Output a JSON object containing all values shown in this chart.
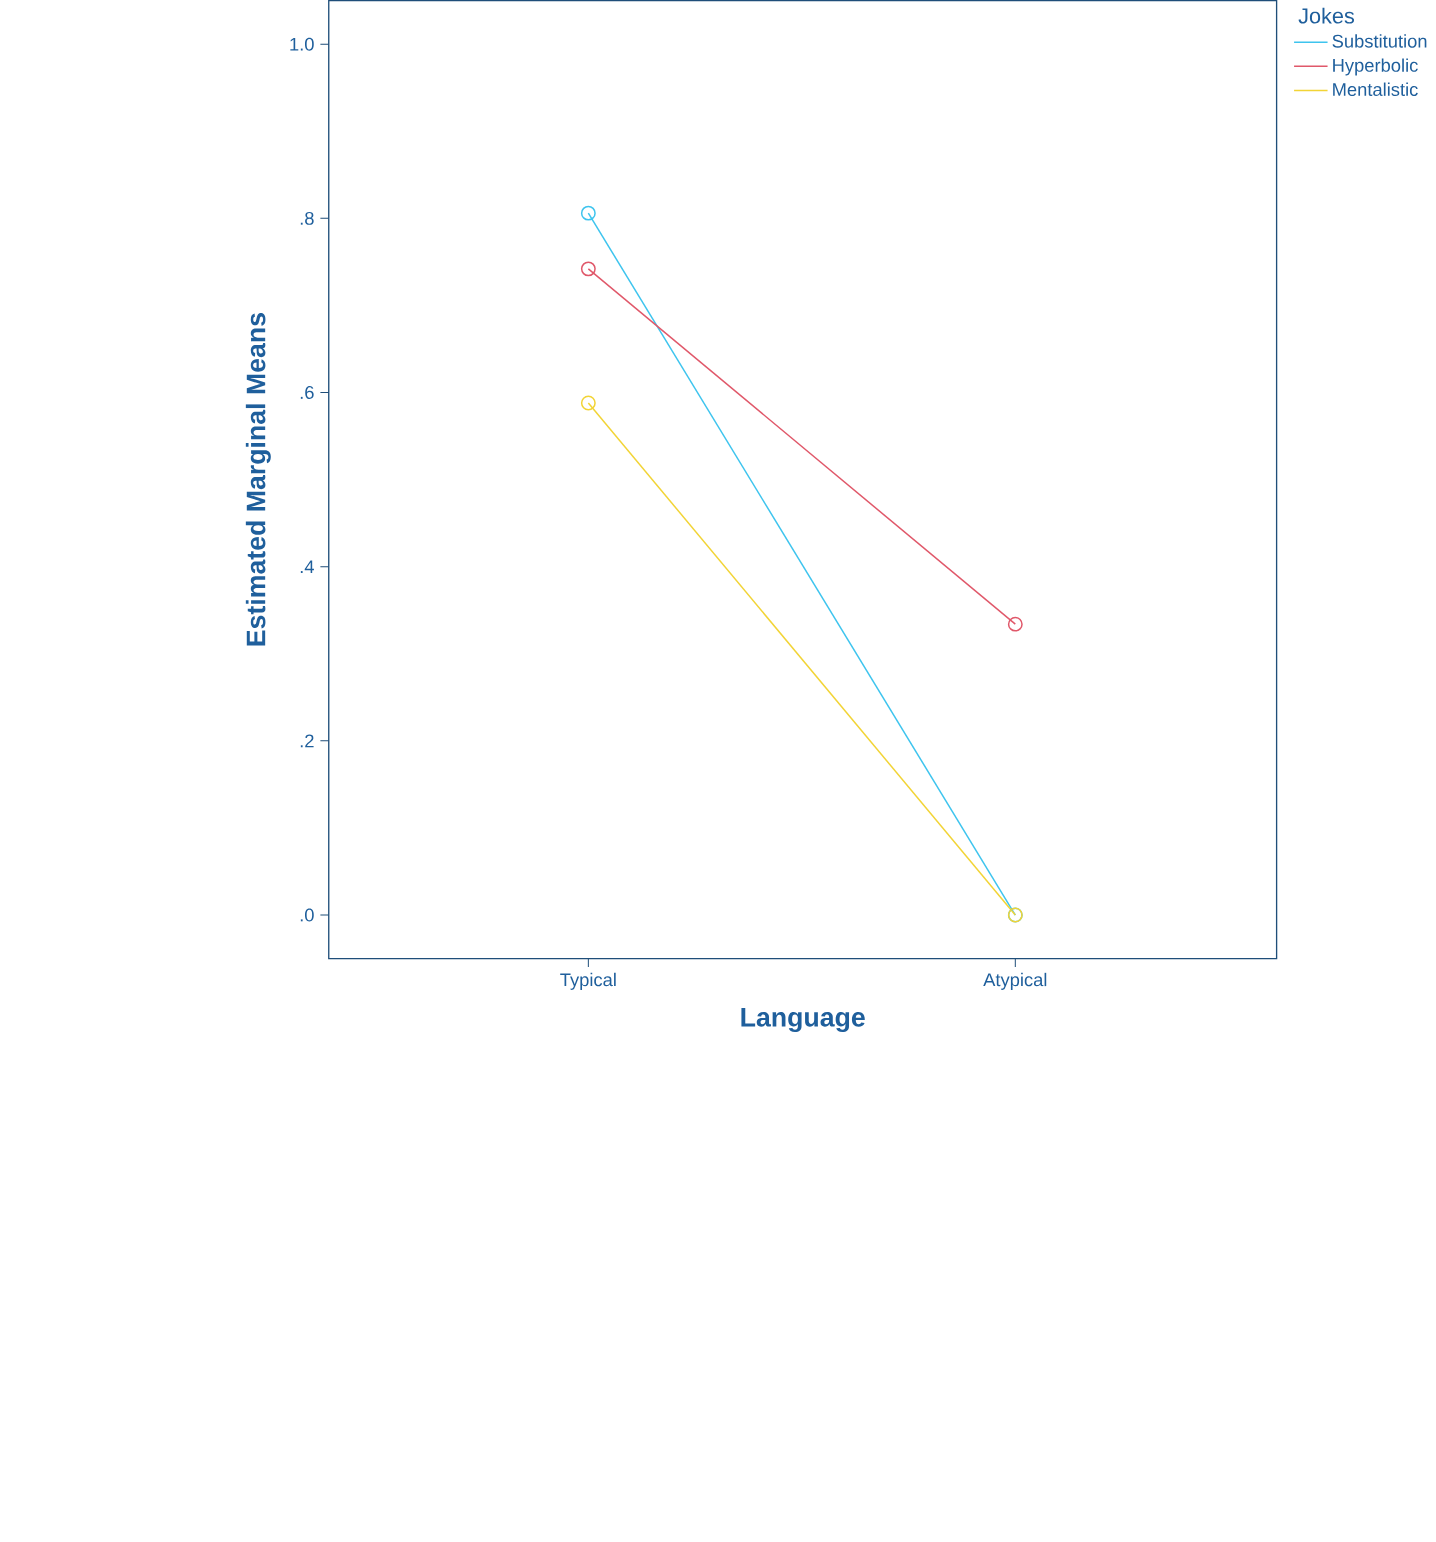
{
  "chart_data": {
    "type": "line",
    "xlabel": "Language",
    "ylabel": "Estimated Marginal Means",
    "legend_title": "Jokes",
    "categories": [
      "Typical",
      "Atypical"
    ],
    "series": [
      {
        "name": "Substitution",
        "color": "#3ec4ee",
        "values": [
          0.806,
          0.0
        ]
      },
      {
        "name": "Hyperbolic",
        "color": "#e0586a",
        "values": [
          0.742,
          0.334
        ]
      },
      {
        "name": "Mentalistic",
        "color": "#f2d436",
        "values": [
          0.588,
          0.0
        ]
      }
    ],
    "ylim": [
      -0.05,
      1.05
    ],
    "yticks": [
      {
        "value": 0,
        "label": ".0"
      },
      {
        "value": 0.2,
        "label": ".2"
      },
      {
        "value": 0.4,
        "label": ".4"
      },
      {
        "value": 0.6,
        "label": ".6"
      },
      {
        "value": 0.8,
        "label": ".8"
      },
      {
        "value": 1.0,
        "label": "1.0"
      }
    ],
    "grid": false,
    "legend": "top right",
    "marker": "circle",
    "line_style": "solid"
  }
}
